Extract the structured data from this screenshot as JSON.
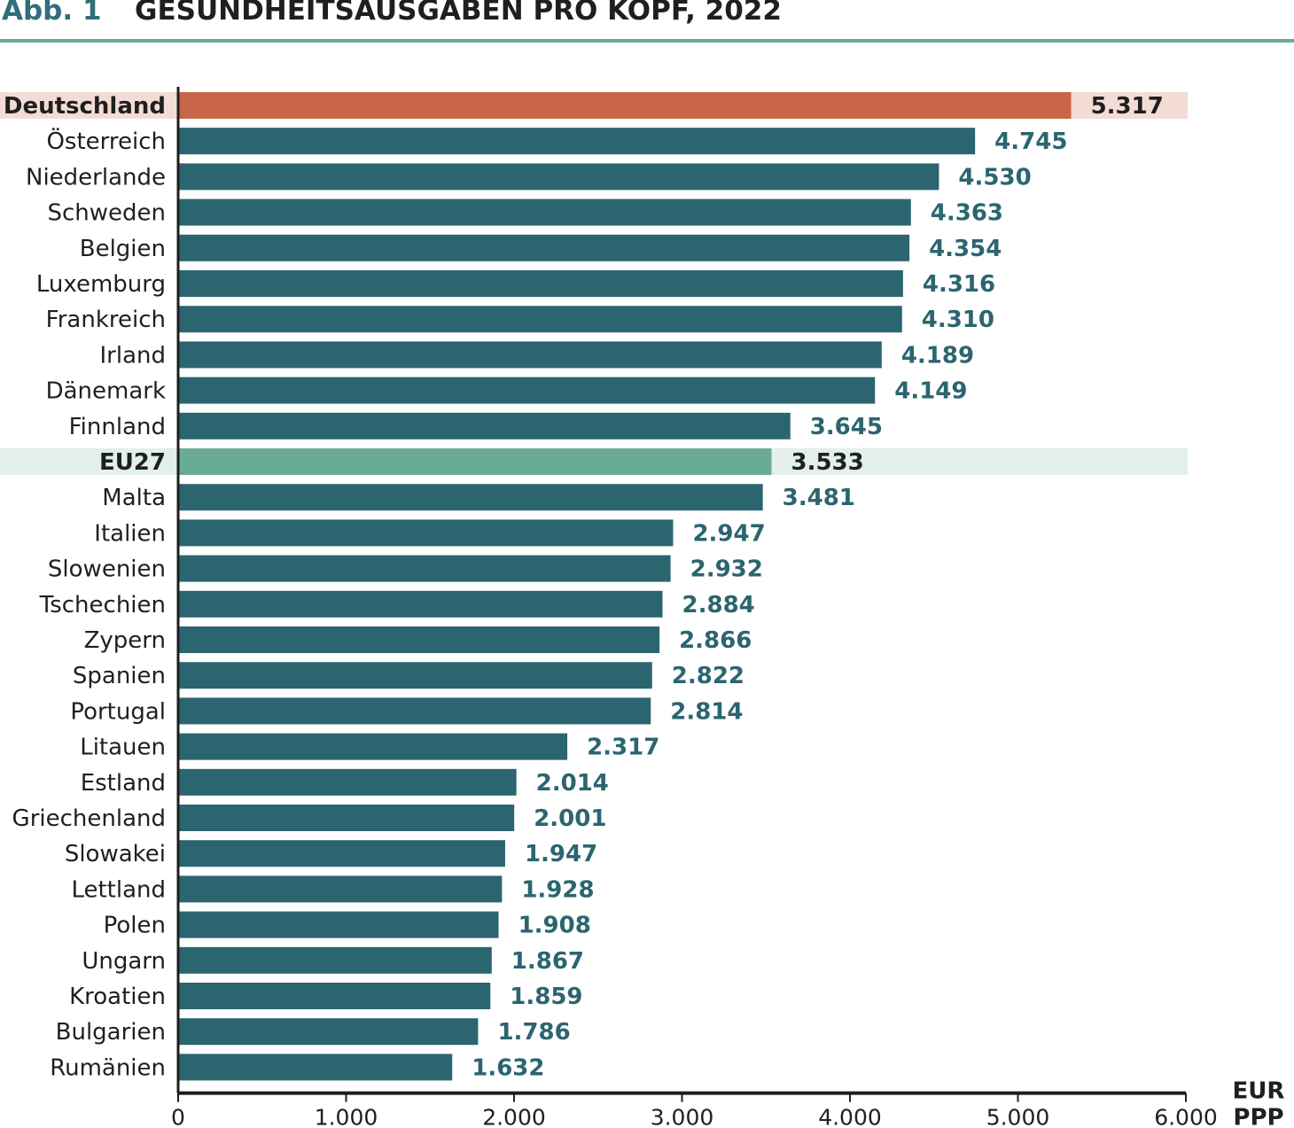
{
  "figure_number": "Abb. 1",
  "title": "GESUNDHEITSAUSGABEN PRO KOPF, 2022",
  "colors": {
    "bar": "#2b6570",
    "highlight_de_bar": "#c96548",
    "highlight_de_band": "#f4dcd6",
    "highlight_eu_bar": "#6aab98",
    "highlight_eu_band": "#e2efeb",
    "value_text": "#2b6570",
    "axis": "#1f1f1f",
    "header_rule": "#6aab98"
  },
  "chart_data": {
    "type": "bar",
    "orientation": "horizontal",
    "categories": [
      "Deutschland",
      "Österreich",
      "Niederlande",
      "Schweden",
      "Belgien",
      "Luxemburg",
      "Frankreich",
      "Irland",
      "Dänemark",
      "Finnland",
      "EU27",
      "Malta",
      "Italien",
      "Slowenien",
      "Tschechien",
      "Zypern",
      "Spanien",
      "Portugal",
      "Litauen",
      "Estland",
      "Griechenland",
      "Slowakei",
      "Lettland",
      "Polen",
      "Ungarn",
      "Kroatien",
      "Bulgarien",
      "Rumänien"
    ],
    "values": [
      5317,
      4745,
      4530,
      4363,
      4354,
      4316,
      4310,
      4189,
      4149,
      3645,
      3533,
      3481,
      2947,
      2932,
      2884,
      2866,
      2822,
      2814,
      2317,
      2014,
      2001,
      1947,
      1928,
      1908,
      1867,
      1859,
      1786,
      1632
    ],
    "value_labels": [
      "5.317",
      "4.745",
      "4.530",
      "4.363",
      "4.354",
      "4.316",
      "4.310",
      "4.189",
      "4.149",
      "3.645",
      "3.533",
      "3.481",
      "2.947",
      "2.932",
      "2.884",
      "2.866",
      "2.822",
      "2.814",
      "2.317",
      "2.014",
      "2.001",
      "1.947",
      "1.928",
      "1.908",
      "1.867",
      "1.859",
      "1.786",
      "1.632"
    ],
    "highlights": {
      "Deutschland": "germany",
      "EU27": "eu"
    },
    "xlim": [
      0,
      6000
    ],
    "x_ticks": [
      0,
      1000,
      2000,
      3000,
      4000,
      5000,
      6000
    ],
    "x_tick_labels": [
      "0",
      "1.000",
      "2.000",
      "3.000",
      "4.000",
      "5.000",
      "6.000"
    ],
    "unit_label": [
      "EUR",
      "PPP"
    ],
    "grid": false
  }
}
